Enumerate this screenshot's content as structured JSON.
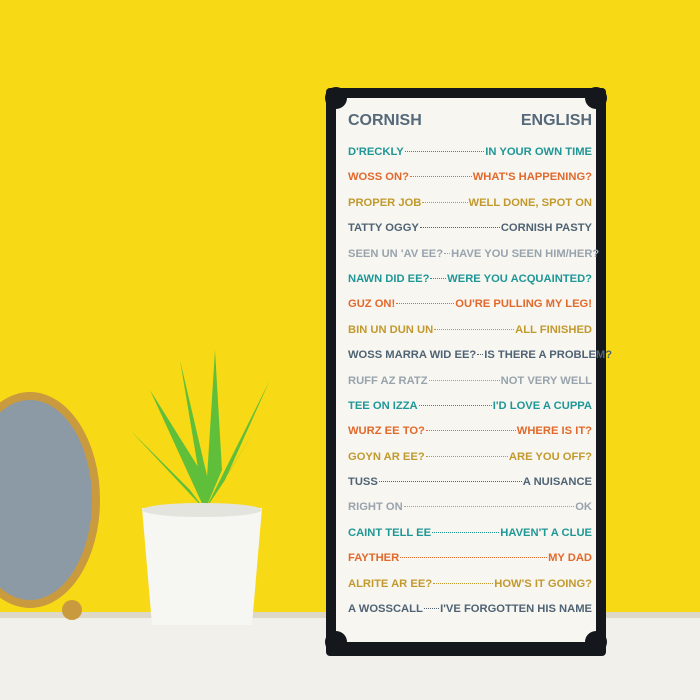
{
  "header": {
    "left": "CORNISH",
    "right": "ENGLISH"
  },
  "rows": [
    {
      "cornish": "D'RECKLY",
      "english": "IN YOUR OWN TIME",
      "color": "#1f9797"
    },
    {
      "cornish": "WOSS ON?",
      "english": "WHAT'S HAPPENING?",
      "color": "#e2692b"
    },
    {
      "cornish": "PROPER JOB",
      "english": "WELL DONE, SPOT ON",
      "color": "#c2992d"
    },
    {
      "cornish": "TATTY OGGY",
      "english": "CORNISH PASTY",
      "color": "#4f6374"
    },
    {
      "cornish": "SEEN UN 'AV EE?",
      "english": "HAVE YOU SEEN HIM/HER?",
      "color": "#98a3ad"
    },
    {
      "cornish": "NAWN DID EE?",
      "english": "WERE YOU ACQUAINTED?",
      "color": "#1f9797"
    },
    {
      "cornish": "GUZ ON!",
      "english": "OU'RE PULLING MY LEG!",
      "color": "#e2692b"
    },
    {
      "cornish": "BIN UN DUN UN",
      "english": "ALL FINISHED",
      "color": "#c2992d"
    },
    {
      "cornish": "WOSS MARRA WID EE?",
      "english": "IS THERE A PROBLEM?",
      "color": "#4f6374"
    },
    {
      "cornish": "RUFF AZ RATZ",
      "english": "NOT VERY WELL",
      "color": "#98a3ad"
    },
    {
      "cornish": "TEE ON IZZA",
      "english": "I'D LOVE A CUPPA",
      "color": "#1f9797"
    },
    {
      "cornish": "WURZ EE TO?",
      "english": "WHERE IS IT?",
      "color": "#e2692b"
    },
    {
      "cornish": "GOYN AR EE?",
      "english": "ARE YOU OFF?",
      "color": "#c2992d"
    },
    {
      "cornish": "TUSS",
      "english": "A NUISANCE",
      "color": "#4f6374"
    },
    {
      "cornish": "RIGHT ON",
      "english": "OK",
      "color": "#98a3ad"
    },
    {
      "cornish": "CAINT TELL EE",
      "english": "HAVEN'T A CLUE",
      "color": "#1f9797"
    },
    {
      "cornish": "FAYTHER",
      "english": "MY DAD",
      "color": "#e2692b"
    },
    {
      "cornish": "ALRITE AR EE?",
      "english": "HOW'S IT GOING?",
      "color": "#c2992d"
    },
    {
      "cornish": "A WOSSCALL",
      "english": "I'VE FORGOTTEN HIS NAME",
      "color": "#4f6374"
    }
  ]
}
